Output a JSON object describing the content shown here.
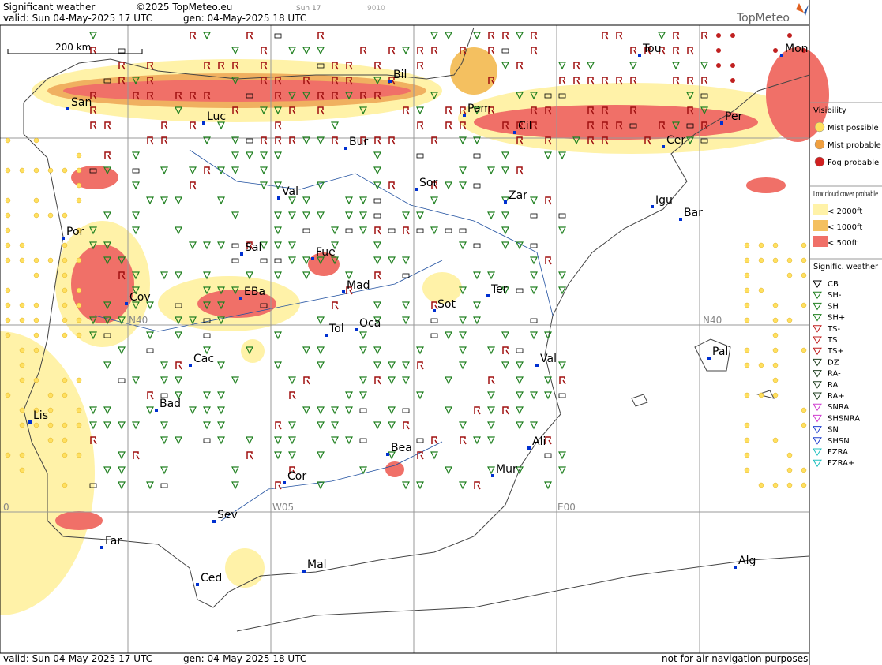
{
  "header": {
    "title": "Significant weather",
    "copyright": "©2025 TopMeteo.eu",
    "run": "Sun 17",
    "code": "9010",
    "valid": "valid:  Sun  04-May-2025  17 UTC",
    "gen": "gen: 04-May-2025 18 UTC",
    "brand": "TopMeteo"
  },
  "scale": "200 km",
  "grid_labels": [
    "N40",
    "N40",
    "W05",
    "E00",
    "0"
  ],
  "cities": [
    "San",
    "Luc",
    "Bil",
    "Pam",
    "Cil",
    "Tou",
    "Mon",
    "Per",
    "Cer",
    "Bur",
    "Sor",
    "Zar",
    "Val",
    "Igu",
    "Bar",
    "Por",
    "Sal",
    "Fue",
    "Mad",
    "Ter",
    "Cov",
    "EBa",
    "Sot",
    "Tol",
    "Oca",
    "Val",
    "Pal",
    "Cac",
    "Bad",
    "Lis",
    "Bea",
    "Ali",
    "Mur",
    "Cor",
    "Sev",
    "Far",
    "Mal",
    "Ced",
    "Alg"
  ],
  "legend": {
    "visibility": {
      "title": "Visibility",
      "items": [
        "Mist possible",
        "Mist probable",
        "Fog probable"
      ]
    },
    "low_cloud": {
      "title": "Low cloud cover probable",
      "items": [
        "< 2000ft",
        "< 1000ft",
        "<  500ft"
      ]
    },
    "weather": {
      "title": "Signific. weather",
      "items": [
        "CB",
        "SH-",
        "SH",
        "SH+",
        "TS-",
        "TS",
        "TS+",
        "DZ",
        "RA-",
        "RA",
        "RA+",
        "SNRA",
        "SHSNRA",
        "SN",
        "SHSN",
        "FZRA",
        "FZRA+"
      ]
    }
  },
  "footer": {
    "valid": "valid:  Sun  04-May-2025  17 UTC",
    "gen": "gen: 04-May-2025 18 UTC",
    "note": "not for air navigation purposes"
  }
}
